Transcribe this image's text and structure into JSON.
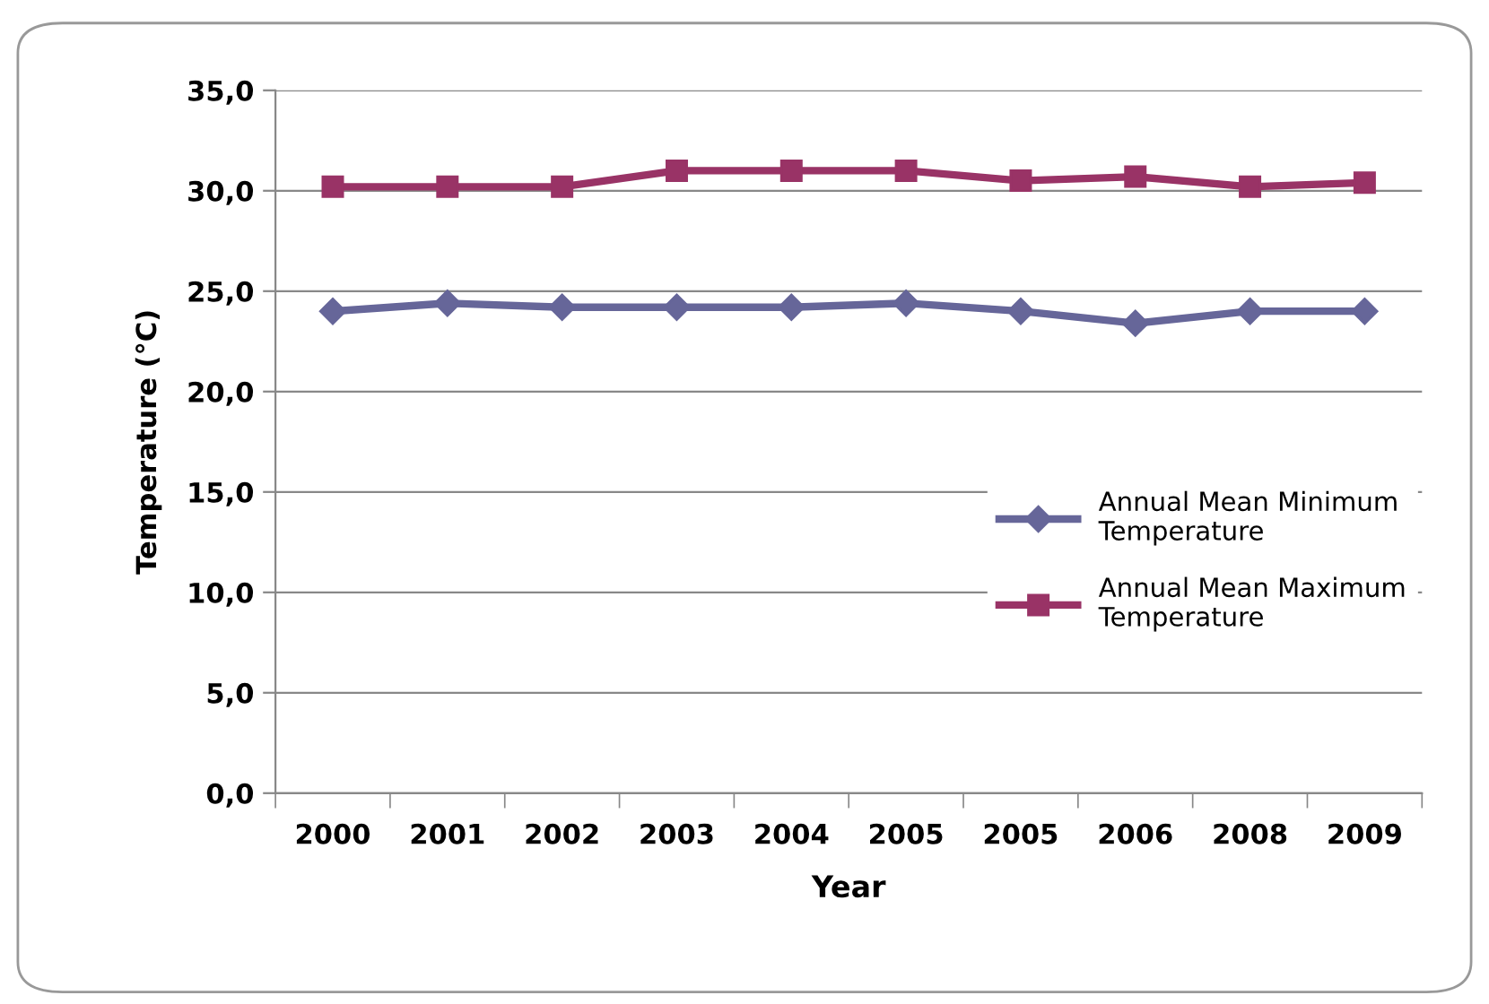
{
  "chart_data": {
    "type": "line",
    "xlabel": "Year",
    "ylabel": "Temperature (°C)",
    "categories": [
      "2000",
      "2001",
      "2002",
      "2003",
      "2004",
      "2005",
      "2005",
      "2006",
      "2008",
      "2009"
    ],
    "series": [
      {
        "name": "Annual Mean Minimum Temperature",
        "color": "#666699",
        "marker": "diamond",
        "values": [
          24.0,
          24.4,
          24.2,
          24.2,
          24.2,
          24.4,
          24.0,
          23.4,
          24.0,
          24.0
        ]
      },
      {
        "name": "Annual Mean Maximum Temperature",
        "color": "#993366",
        "marker": "square",
        "values": [
          30.2,
          30.2,
          30.2,
          31.0,
          31.0,
          31.0,
          30.5,
          30.7,
          30.2,
          30.4
        ]
      }
    ],
    "ylim": [
      0,
      35
    ],
    "yticks": [
      {
        "value": 0,
        "label": "0,0"
      },
      {
        "value": 5,
        "label": "5,0"
      },
      {
        "value": 10,
        "label": "10,0"
      },
      {
        "value": 15,
        "label": "15,0"
      },
      {
        "value": 20,
        "label": "20,0"
      },
      {
        "value": 25,
        "label": "25,0"
      },
      {
        "value": 30,
        "label": "30,0"
      },
      {
        "value": 35,
        "label": "35,0"
      }
    ],
    "grid": "y",
    "legend": "right",
    "line_style": "solid"
  }
}
